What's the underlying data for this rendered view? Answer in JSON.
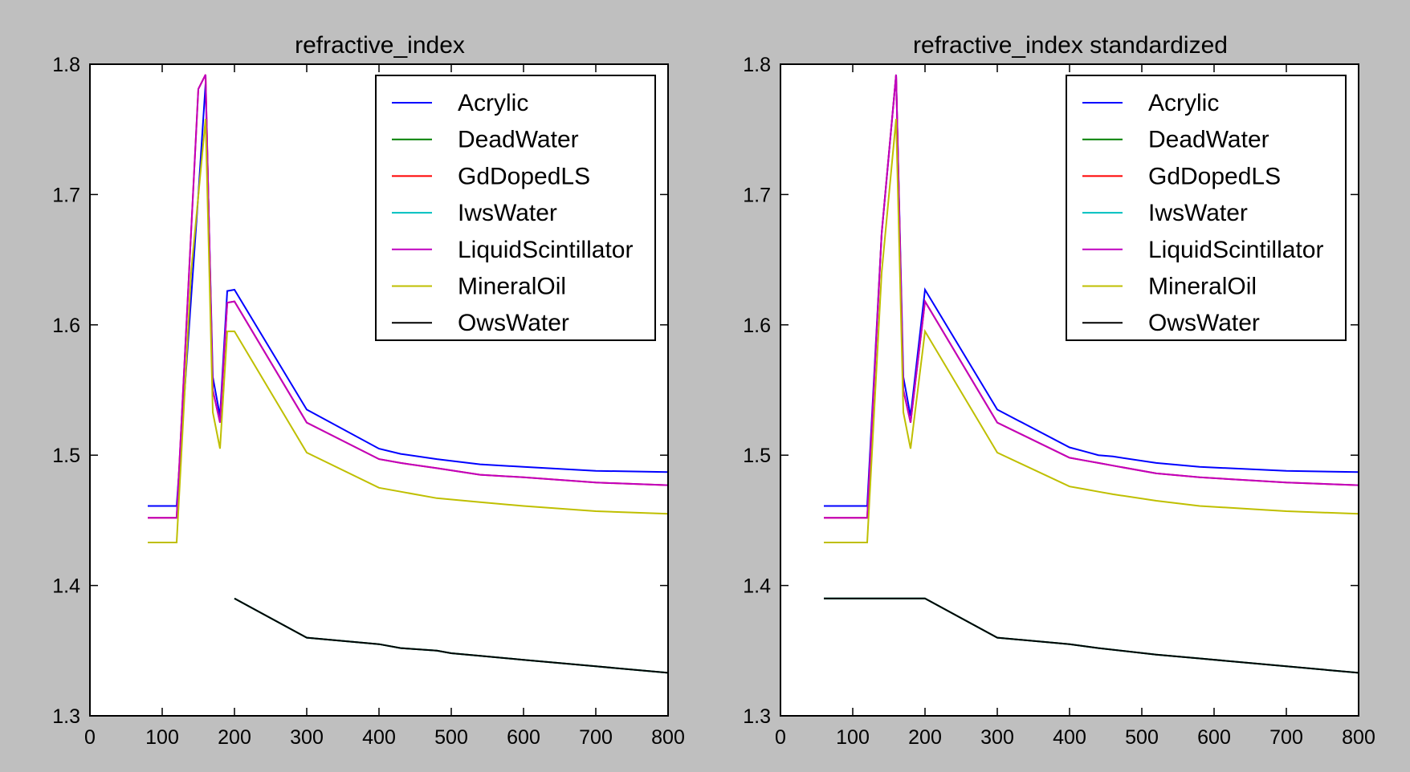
{
  "figure": {
    "background": "#bfbfbf"
  },
  "legend_entries": [
    {
      "name": "Acrylic",
      "color": "#0000ff"
    },
    {
      "name": "DeadWater",
      "color": "#007f00"
    },
    {
      "name": "GdDopedLS",
      "color": "#ff0000"
    },
    {
      "name": "IwsWater",
      "color": "#00bfbf"
    },
    {
      "name": "LiquidScintillator",
      "color": "#bf00bf"
    },
    {
      "name": "MineralOil",
      "color": "#bfbf00"
    },
    {
      "name": "OwsWater",
      "color": "#000000"
    }
  ],
  "chart_data": [
    {
      "type": "line",
      "title": "refractive_index",
      "xlabel": "",
      "ylabel": "",
      "xlim": [
        0,
        800
      ],
      "ylim": [
        1.3,
        1.8
      ],
      "xticks": [
        "0",
        "100",
        "200",
        "300",
        "400",
        "500",
        "600",
        "700",
        "800"
      ],
      "yticks": [
        "1.3",
        "1.4",
        "1.5",
        "1.6",
        "1.7",
        "1.8"
      ],
      "legend": "top-right",
      "grid": false,
      "series": [
        {
          "name": "Acrylic",
          "color": "#0000ff",
          "x": [
            80,
            120,
            150,
            160,
            170,
            180,
            190,
            200,
            300,
            400,
            430,
            480,
            540,
            600,
            700,
            800
          ],
          "y": [
            1.461,
            1.461,
            1.7,
            1.785,
            1.56,
            1.53,
            1.626,
            1.627,
            1.535,
            1.505,
            1.501,
            1.497,
            1.493,
            1.491,
            1.488,
            1.487
          ]
        },
        {
          "name": "DeadWater",
          "color": "#007f00",
          "x": [
            200,
            300,
            400,
            430,
            480,
            500,
            540,
            600,
            700,
            800
          ],
          "y": [
            1.39,
            1.36,
            1.355,
            1.352,
            1.35,
            1.348,
            1.346,
            1.343,
            1.338,
            1.333
          ]
        },
        {
          "name": "GdDopedLS",
          "color": "#ff0000",
          "x": [
            80,
            120,
            150,
            160,
            170,
            180,
            190,
            200,
            300,
            400,
            430,
            480,
            540,
            600,
            700,
            800
          ],
          "y": [
            1.452,
            1.452,
            1.781,
            1.792,
            1.55,
            1.525,
            1.617,
            1.618,
            1.525,
            1.497,
            1.494,
            1.49,
            1.485,
            1.483,
            1.479,
            1.477
          ]
        },
        {
          "name": "IwsWater",
          "color": "#00bfbf",
          "x": [
            200,
            300,
            400,
            430,
            480,
            500,
            540,
            600,
            700,
            800
          ],
          "y": [
            1.39,
            1.36,
            1.355,
            1.352,
            1.35,
            1.348,
            1.346,
            1.343,
            1.338,
            1.333
          ]
        },
        {
          "name": "LiquidScintillator",
          "color": "#bf00bf",
          "x": [
            80,
            120,
            150,
            160,
            170,
            180,
            190,
            200,
            300,
            400,
            430,
            480,
            540,
            600,
            700,
            800
          ],
          "y": [
            1.452,
            1.452,
            1.781,
            1.792,
            1.55,
            1.525,
            1.617,
            1.618,
            1.525,
            1.497,
            1.494,
            1.49,
            1.485,
            1.483,
            1.479,
            1.477
          ]
        },
        {
          "name": "MineralOil",
          "color": "#bfbf00",
          "x": [
            80,
            120,
            140,
            160,
            170,
            180,
            190,
            200,
            300,
            400,
            430,
            480,
            540,
            600,
            700,
            800
          ],
          "y": [
            1.433,
            1.433,
            1.64,
            1.758,
            1.533,
            1.505,
            1.595,
            1.595,
            1.502,
            1.475,
            1.472,
            1.467,
            1.464,
            1.461,
            1.457,
            1.455
          ]
        },
        {
          "name": "OwsWater",
          "color": "#000000",
          "x": [
            200,
            300,
            400,
            430,
            480,
            500,
            540,
            600,
            700,
            800
          ],
          "y": [
            1.39,
            1.36,
            1.355,
            1.352,
            1.35,
            1.348,
            1.346,
            1.343,
            1.338,
            1.333
          ]
        }
      ]
    },
    {
      "type": "line",
      "title": "refractive_index standardized",
      "xlabel": "",
      "ylabel": "",
      "xlim": [
        0,
        800
      ],
      "ylim": [
        1.3,
        1.8
      ],
      "xticks": [
        "0",
        "100",
        "200",
        "300",
        "400",
        "500",
        "600",
        "700",
        "800"
      ],
      "yticks": [
        "1.3",
        "1.4",
        "1.5",
        "1.6",
        "1.7",
        "1.8"
      ],
      "legend": "top-right",
      "grid": false,
      "series": [
        {
          "name": "Acrylic",
          "color": "#0000ff",
          "x": [
            60,
            120,
            140,
            160,
            170,
            180,
            200,
            300,
            400,
            420,
            440,
            460,
            520,
            580,
            700,
            800
          ],
          "y": [
            1.461,
            1.461,
            1.67,
            1.792,
            1.56,
            1.53,
            1.627,
            1.535,
            1.506,
            1.503,
            1.5,
            1.499,
            1.494,
            1.491,
            1.488,
            1.487
          ]
        },
        {
          "name": "DeadWater",
          "color": "#007f00",
          "x": [
            60,
            200,
            300,
            400,
            440,
            520,
            580,
            700,
            800
          ],
          "y": [
            1.39,
            1.39,
            1.36,
            1.355,
            1.352,
            1.347,
            1.344,
            1.338,
            1.333
          ]
        },
        {
          "name": "GdDopedLS",
          "color": "#ff0000",
          "x": [
            60,
            120,
            140,
            160,
            170,
            180,
            200,
            300,
            400,
            420,
            440,
            460,
            520,
            580,
            700,
            800
          ],
          "y": [
            1.452,
            1.452,
            1.67,
            1.792,
            1.55,
            1.525,
            1.618,
            1.525,
            1.498,
            1.496,
            1.494,
            1.492,
            1.486,
            1.483,
            1.479,
            1.477
          ]
        },
        {
          "name": "IwsWater",
          "color": "#00bfbf",
          "x": [
            60,
            200,
            300,
            400,
            440,
            520,
            580,
            700,
            800
          ],
          "y": [
            1.39,
            1.39,
            1.36,
            1.355,
            1.352,
            1.347,
            1.344,
            1.338,
            1.333
          ]
        },
        {
          "name": "LiquidScintillator",
          "color": "#bf00bf",
          "x": [
            60,
            120,
            140,
            160,
            170,
            180,
            200,
            300,
            400,
            420,
            440,
            460,
            520,
            580,
            700,
            800
          ],
          "y": [
            1.452,
            1.452,
            1.67,
            1.792,
            1.55,
            1.525,
            1.618,
            1.525,
            1.498,
            1.496,
            1.494,
            1.492,
            1.486,
            1.483,
            1.479,
            1.477
          ]
        },
        {
          "name": "MineralOil",
          "color": "#bfbf00",
          "x": [
            60,
            120,
            140,
            160,
            170,
            180,
            200,
            300,
            400,
            420,
            440,
            460,
            520,
            580,
            700,
            800
          ],
          "y": [
            1.433,
            1.433,
            1.64,
            1.758,
            1.533,
            1.505,
            1.595,
            1.502,
            1.476,
            1.474,
            1.472,
            1.47,
            1.465,
            1.461,
            1.457,
            1.455
          ]
        },
        {
          "name": "OwsWater",
          "color": "#000000",
          "x": [
            60,
            200,
            300,
            400,
            440,
            520,
            580,
            700,
            800
          ],
          "y": [
            1.39,
            1.39,
            1.36,
            1.355,
            1.352,
            1.347,
            1.344,
            1.338,
            1.333
          ]
        }
      ]
    }
  ]
}
